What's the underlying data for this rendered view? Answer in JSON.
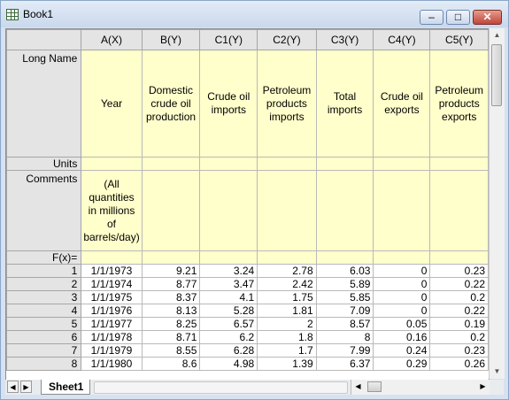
{
  "window": {
    "title": "Book1",
    "minimize_glyph": "–",
    "restore_glyph": "□",
    "close_glyph": "✕"
  },
  "grid": {
    "columns": [
      "A(X)",
      "B(Y)",
      "C1(Y)",
      "C2(Y)",
      "C3(Y)",
      "C4(Y)",
      "C5(Y)"
    ],
    "row_labels": {
      "long_name": "Long Name",
      "units": "Units",
      "comments": "Comments",
      "fx": "F(x)="
    },
    "long_names": [
      "Year",
      "Domestic crude oil production",
      "Crude oil imports",
      "Petroleum products imports",
      "Total imports",
      "Crude oil exports",
      "Petroleum products exports"
    ],
    "comments_a": "(All quantities in millions of barrels/day)",
    "rows": [
      {
        "n": "1",
        "cells": [
          "1/1/1973",
          "9.21",
          "3.24",
          "2.78",
          "6.03",
          "0",
          "0.23"
        ]
      },
      {
        "n": "2",
        "cells": [
          "1/1/1974",
          "8.77",
          "3.47",
          "2.42",
          "5.89",
          "0",
          "0.22"
        ]
      },
      {
        "n": "3",
        "cells": [
          "1/1/1975",
          "8.37",
          "4.1",
          "1.75",
          "5.85",
          "0",
          "0.2"
        ]
      },
      {
        "n": "4",
        "cells": [
          "1/1/1976",
          "8.13",
          "5.28",
          "1.81",
          "7.09",
          "0",
          "0.22"
        ]
      },
      {
        "n": "5",
        "cells": [
          "1/1/1977",
          "8.25",
          "6.57",
          "2",
          "8.57",
          "0.05",
          "0.19"
        ]
      },
      {
        "n": "6",
        "cells": [
          "1/1/1978",
          "8.71",
          "6.2",
          "1.8",
          "8",
          "0.16",
          "0.2"
        ]
      },
      {
        "n": "7",
        "cells": [
          "1/1/1979",
          "8.55",
          "6.28",
          "1.7",
          "7.99",
          "0.24",
          "0.23"
        ]
      },
      {
        "n": "8",
        "cells": [
          "1/1/1980",
          "8.6",
          "4.98",
          "1.39",
          "6.37",
          "0.29",
          "0.26"
        ]
      }
    ]
  },
  "sheet_tab": "Sheet1",
  "colors": {
    "long_name_bg": "#ffffcc",
    "header_bg": "#e4e4e4",
    "close_red": "#c0463b"
  }
}
